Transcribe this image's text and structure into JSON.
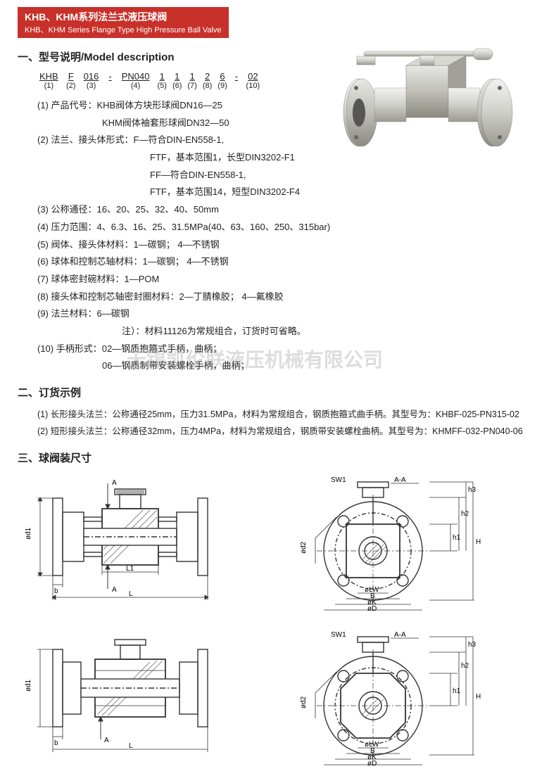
{
  "title": {
    "main": "KHB、KHM系列法兰式液压球阀",
    "sub": "KHB、KHM Series Flange Type High Pressure Ball Valve"
  },
  "section1": {
    "heading": "一、型号说明/Model description",
    "code": {
      "segs": [
        {
          "lbl": "KHB",
          "num": "(1)"
        },
        {
          "lbl": "F",
          "num": "(2)"
        },
        {
          "lbl": "016",
          "num": "(3)"
        },
        {
          "lbl": "-",
          "num": ""
        },
        {
          "lbl": "PN040",
          "num": "(4)"
        },
        {
          "lbl": "1",
          "num": "(5)"
        },
        {
          "lbl": "1",
          "num": "(6)"
        },
        {
          "lbl": "1",
          "num": "(7)"
        },
        {
          "lbl": "2",
          "num": "(8)"
        },
        {
          "lbl": "6",
          "num": "(9)"
        },
        {
          "lbl": "-",
          "num": ""
        },
        {
          "lbl": "02",
          "num": "(10)"
        }
      ]
    },
    "items": [
      {
        "n": "(1)",
        "label": "产品代号：",
        "text": "KHB阀体方块形球阀DN16—25"
      },
      {
        "n": "",
        "label": "",
        "text": "KHM阀体袖套形球阀DN32—50",
        "indent": true
      },
      {
        "n": "(2)",
        "label": "法兰、接头体形式：",
        "text": "F—符合DIN-EN558-1,"
      },
      {
        "n": "",
        "label": "",
        "text": "FTF，基本范围1，长型DIN3202-F1",
        "indent2": true
      },
      {
        "n": "",
        "label": "",
        "text": "FF—符合DIN-EN558-1,",
        "indent2": true
      },
      {
        "n": "",
        "label": "",
        "text": "FTF，基本范围14，短型DIN3202-F4",
        "indent2": true
      },
      {
        "n": "(3)",
        "label": "公称通径：",
        "text": "16、20、25、32、40、50mm"
      },
      {
        "n": "(4)",
        "label": "压力范围：",
        "text": "4、6.3、16、25、31.5MPa(40、63、160、250、315bar)"
      },
      {
        "n": "(5)",
        "label": "阀体、接头体材料：",
        "text": "1—碳钢； 4—不锈钢"
      },
      {
        "n": "(6)",
        "label": "球体和控制芯轴材料：",
        "text": "1—碳钢； 4—不锈钢"
      },
      {
        "n": "(7)",
        "label": "球体密封碗材料：",
        "text": "1—POM"
      },
      {
        "n": "(8)",
        "label": "接头体和控制芯轴密封圈材料：",
        "text": "2—丁腈橡胶； 4—氟橡胶"
      },
      {
        "n": "(9)",
        "label": "法兰材料：",
        "text": "6—碳钢"
      },
      {
        "n": "",
        "label": "注）：",
        "text": "材料11126为常规组合，订货时可省略。",
        "note": true
      },
      {
        "n": "(10)",
        "label": "手柄形式：",
        "text": "02—钢质抱箍式手柄，曲柄；"
      },
      {
        "n": "",
        "label": "",
        "text": "06—钢质制带安装螺栓手柄，曲柄；",
        "indent": true
      }
    ]
  },
  "section2": {
    "heading": "二、订货示例",
    "lines": [
      "(1) 长形接头法兰：公称通径25mm，压力31.5MPa，材料为常规组合，钢质抱箍式曲手柄。其型号为：KHBF-025-PN315-02",
      "(2) 短形接头法兰：公称通径32mm，压力4MPa，材料为常规组合，钢质带安装螺栓曲柄。其型号为：KHMFF-032-PN040-06"
    ]
  },
  "section3": {
    "heading": "三、球阀装尺寸"
  },
  "watermark": "无锡凯伦联液压机械有限公司",
  "dim_labels": {
    "side": {
      "d1": "ød1",
      "A": "A",
      "L1": "L1",
      "L": "L",
      "b": "b"
    },
    "front": {
      "SW1": "SW1",
      "AA": "A-A",
      "h1": "h1",
      "h2": "h2",
      "h3": "h3",
      "H": "H",
      "d2": "ød2",
      "LW": "øLW",
      "B": "B",
      "K": "øK",
      "D": "øD"
    }
  },
  "colors": {
    "red": "#c8302a",
    "line": "#333333",
    "hatch": "#555555",
    "bg": "#ffffff"
  }
}
